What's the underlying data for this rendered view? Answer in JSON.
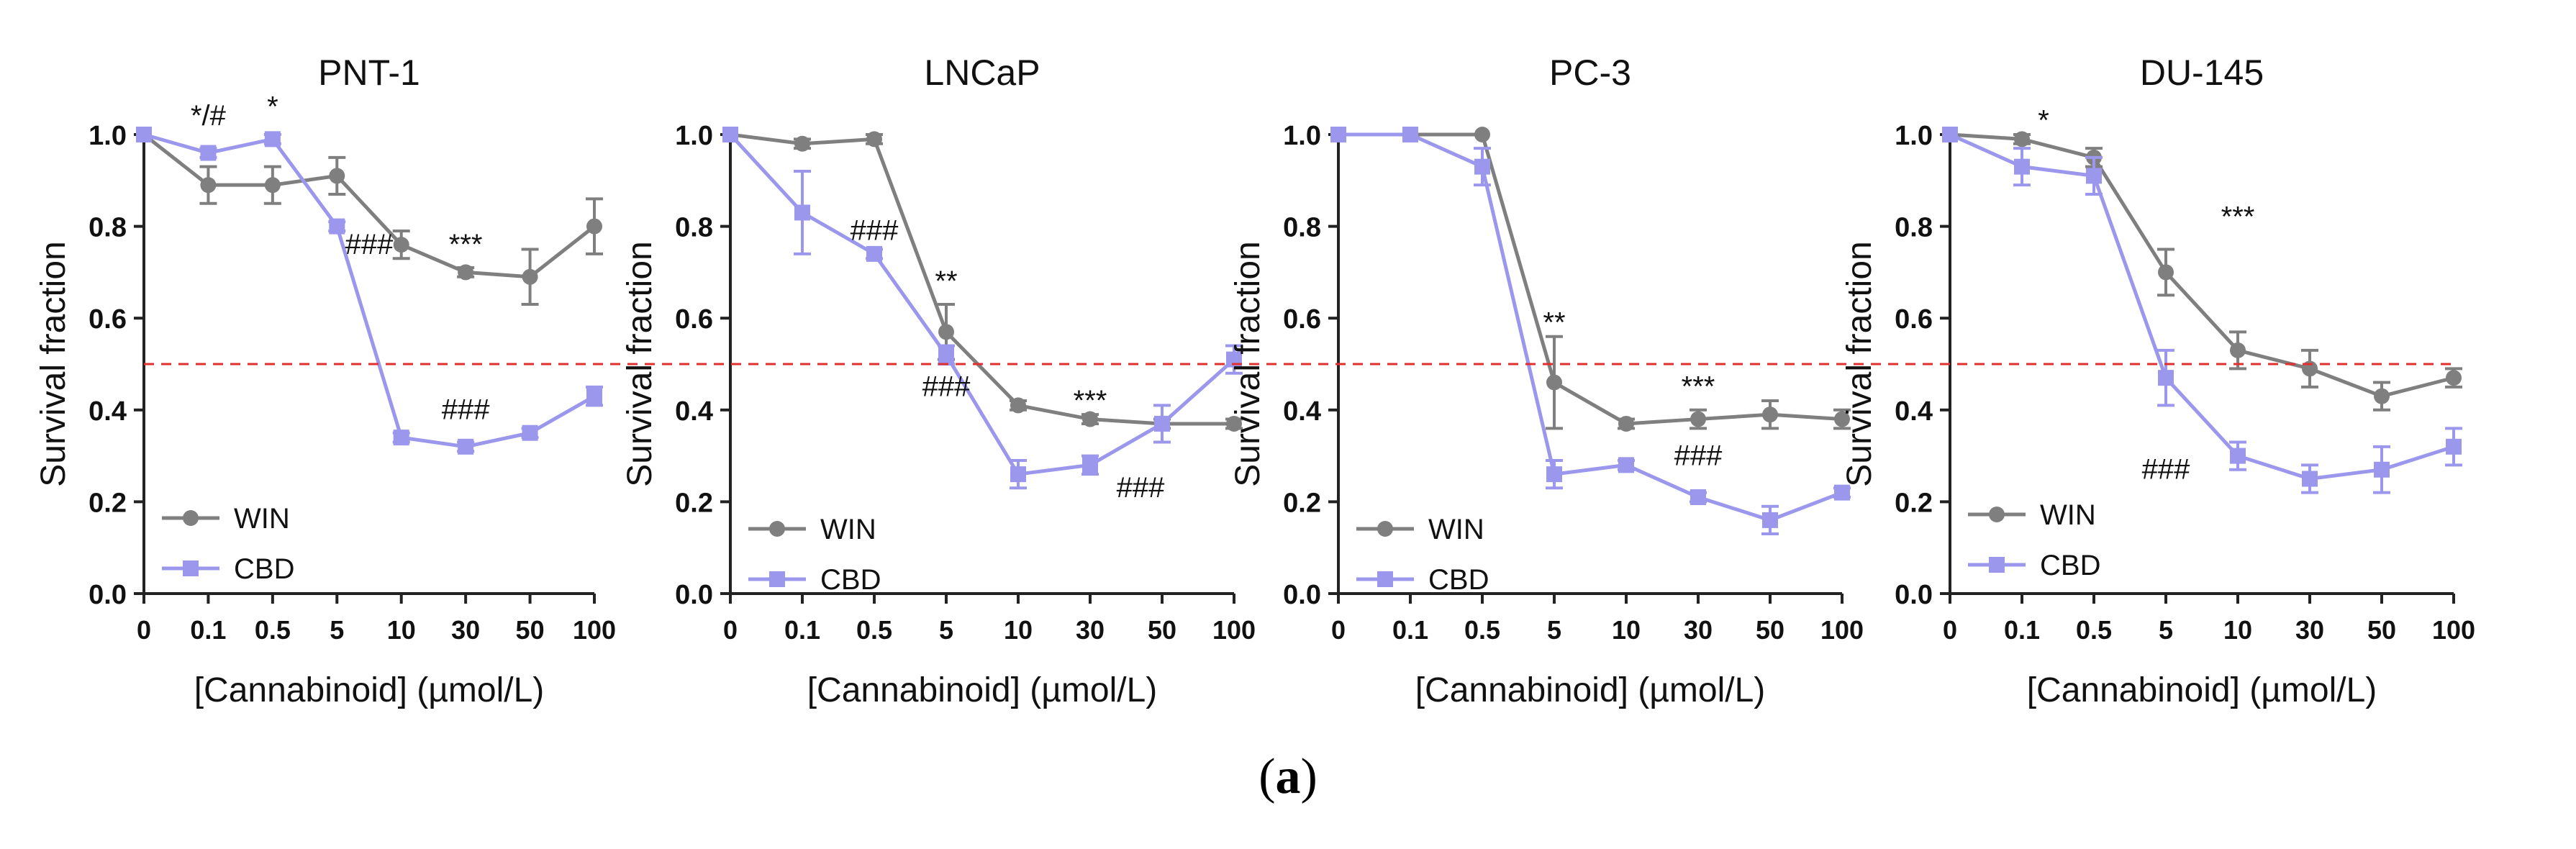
{
  "figure": {
    "caption_open": "(",
    "caption_label": "a",
    "caption_close": ")",
    "x_categories": [
      "0",
      "0.1",
      "0.5",
      "5",
      "10",
      "30",
      "50",
      "100"
    ],
    "xlabel": "[Cannabinoid] (µmol/L)",
    "ylabel": "Survival fraction",
    "yticks": [
      "0.0",
      "0.2",
      "0.4",
      "0.6",
      "0.8",
      "1.0"
    ],
    "threshold": 0.5,
    "colors": {
      "WIN": "#7f7f7f",
      "CBD": "#9a97ec",
      "threshold": "#e03030"
    }
  },
  "chart_data": [
    {
      "type": "line",
      "title": "PNT-1",
      "xlabel": "[Cannabinoid] (µmol/L)",
      "ylabel": "Survival fraction",
      "ylim": [
        0,
        1.0
      ],
      "categories": [
        "0",
        "0.1",
        "0.5",
        "5",
        "10",
        "30",
        "50",
        "100"
      ],
      "series": [
        {
          "name": "WIN",
          "values": [
            1.0,
            0.89,
            0.89,
            0.91,
            0.76,
            0.7,
            0.69,
            0.8
          ],
          "errors": [
            0,
            0.04,
            0.04,
            0.04,
            0.03,
            0.01,
            0.06,
            0.06
          ]
        },
        {
          "name": "CBD",
          "values": [
            1.0,
            0.96,
            0.99,
            0.8,
            0.34,
            0.32,
            0.35,
            0.43
          ],
          "errors": [
            0,
            0.01,
            0.01,
            0.01,
            0.01,
            0.01,
            0.01,
            0.02
          ]
        }
      ],
      "annotations": [
        {
          "text": "*/#",
          "x": 1,
          "y": 1.02
        },
        {
          "text": "*",
          "x": 2,
          "y": 1.04
        },
        {
          "text": "###",
          "x": 3.5,
          "y": 0.74
        },
        {
          "text": "***",
          "x": 5,
          "y": 0.74
        },
        {
          "text": "###",
          "x": 5,
          "y": 0.38
        }
      ]
    },
    {
      "type": "line",
      "title": "LNCaP",
      "xlabel": "[Cannabinoid] (µmol/L)",
      "ylabel": "Survival fraction",
      "ylim": [
        0,
        1.0
      ],
      "categories": [
        "0",
        "0.1",
        "0.5",
        "5",
        "10",
        "30",
        "50",
        "100"
      ],
      "series": [
        {
          "name": "WIN",
          "values": [
            1.0,
            0.98,
            0.99,
            0.57,
            0.41,
            0.38,
            0.37,
            0.37
          ],
          "errors": [
            0,
            0.01,
            0.01,
            0.06,
            0.01,
            0.01,
            0.01,
            0.01
          ]
        },
        {
          "name": "CBD",
          "values": [
            1.0,
            0.83,
            0.74,
            0.52,
            0.26,
            0.28,
            0.37,
            0.51
          ],
          "errors": [
            0,
            0.09,
            0.01,
            0.02,
            0.03,
            0.02,
            0.04,
            0.03
          ]
        }
      ],
      "annotations": [
        {
          "text": "###",
          "x": 2,
          "y": 0.77
        },
        {
          "text": "**",
          "x": 3,
          "y": 0.66
        },
        {
          "text": "###",
          "x": 3,
          "y": 0.43
        },
        {
          "text": "***",
          "x": 5,
          "y": 0.4
        },
        {
          "text": "###",
          "x": 5.7,
          "y": 0.21
        }
      ]
    },
    {
      "type": "line",
      "title": "PC-3",
      "xlabel": "[Cannabinoid] (µmol/L)",
      "ylabel": "Survival fraction",
      "ylim": [
        0,
        1.0
      ],
      "categories": [
        "0",
        "0.1",
        "0.5",
        "5",
        "10",
        "30",
        "50",
        "100"
      ],
      "series": [
        {
          "name": "WIN",
          "values": [
            1.0,
            1.0,
            1.0,
            0.46,
            0.37,
            0.38,
            0.39,
            0.38
          ],
          "errors": [
            0,
            0,
            0,
            0.1,
            0.01,
            0.02,
            0.03,
            0.02
          ]
        },
        {
          "name": "CBD",
          "values": [
            1.0,
            1.0,
            0.93,
            0.26,
            0.28,
            0.21,
            0.16,
            0.22
          ],
          "errors": [
            0,
            0,
            0.04,
            0.03,
            0.01,
            0.01,
            0.03,
            0.01
          ]
        }
      ],
      "annotations": [
        {
          "text": "**",
          "x": 3,
          "y": 0.57
        },
        {
          "text": "***",
          "x": 5,
          "y": 0.43
        },
        {
          "text": "###",
          "x": 5,
          "y": 0.28
        }
      ]
    },
    {
      "type": "line",
      "title": "DU-145",
      "xlabel": "[Cannabinoid] (µmol/L)",
      "ylabel": "Survival fraction",
      "ylim": [
        0,
        1.0
      ],
      "categories": [
        "0",
        "0.1",
        "0.5",
        "5",
        "10",
        "30",
        "50",
        "100"
      ],
      "series": [
        {
          "name": "WIN",
          "values": [
            1.0,
            0.99,
            0.95,
            0.7,
            0.53,
            0.49,
            0.43,
            0.47
          ],
          "errors": [
            0,
            0.01,
            0.02,
            0.05,
            0.04,
            0.04,
            0.03,
            0.02
          ]
        },
        {
          "name": "CBD",
          "values": [
            1.0,
            0.93,
            0.91,
            0.47,
            0.3,
            0.25,
            0.27,
            0.32
          ],
          "errors": [
            0,
            0.04,
            0.04,
            0.06,
            0.03,
            0.03,
            0.05,
            0.04
          ]
        }
      ],
      "annotations": [
        {
          "text": "*",
          "x": 1.3,
          "y": 1.01
        },
        {
          "text": "***",
          "x": 4,
          "y": 0.8
        },
        {
          "text": "###",
          "x": 3,
          "y": 0.25
        }
      ]
    }
  ]
}
